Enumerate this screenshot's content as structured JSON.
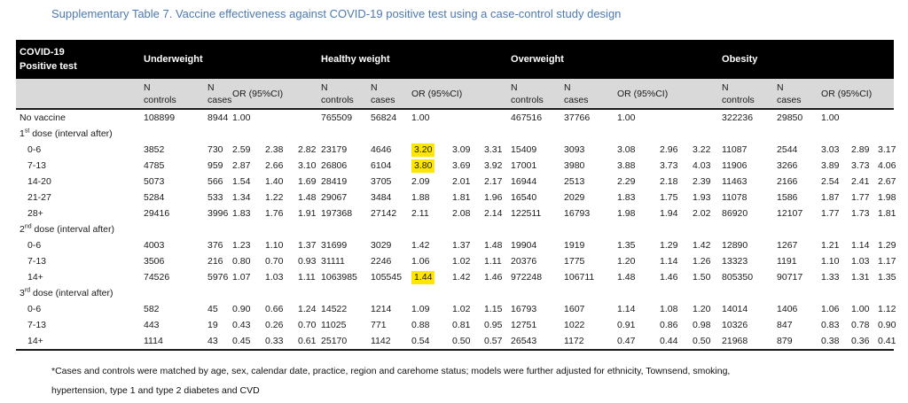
{
  "title": "Supplementary Table 7. Vaccine effectiveness against COVID-19 positive test using a case-control study design",
  "title_color": "#4d7ab0",
  "highlight_color": "#ffe600",
  "table": {
    "corner_line1": "COVID-19",
    "corner_line2": "Positive test",
    "groups": [
      "Underweight",
      "Healthy weight",
      "Overweight",
      "Obesity"
    ],
    "sub": {
      "n": "N",
      "controls": "controls",
      "cases": "cases",
      "or_ci": "OR (95%CI)"
    },
    "rows": [
      {
        "label": "No vaccine",
        "groups": [
          [
            "108899",
            "8944",
            "1.00",
            "",
            ""
          ],
          [
            "765509",
            "56824",
            "1.00",
            "",
            ""
          ],
          [
            "467516",
            "37766",
            "1.00",
            "",
            ""
          ],
          [
            "322236",
            "29850",
            "1.00",
            "",
            ""
          ]
        ]
      },
      {
        "label": "1",
        "sup": "st",
        "rest": " dose (interval after)",
        "section": true
      },
      {
        "label": "0-6",
        "indent": true,
        "hl": [
          [
            1,
            2
          ]
        ],
        "groups": [
          [
            "3852",
            "730",
            "2.59",
            "2.38",
            "2.82"
          ],
          [
            "23179",
            "4646",
            "3.20",
            "3.09",
            "3.31"
          ],
          [
            "15409",
            "3093",
            "3.08",
            "2.96",
            "3.22"
          ],
          [
            "11087",
            "2544",
            "3.03",
            "2.89",
            "3.17"
          ]
        ]
      },
      {
        "label": "7-13",
        "indent": true,
        "hl": [
          [
            1,
            2
          ]
        ],
        "groups": [
          [
            "4785",
            "959",
            "2.87",
            "2.66",
            "3.10"
          ],
          [
            "26806",
            "6104",
            "3.80",
            "3.69",
            "3.92"
          ],
          [
            "17001",
            "3980",
            "3.88",
            "3.73",
            "4.03"
          ],
          [
            "11906",
            "3266",
            "3.89",
            "3.73",
            "4.06"
          ]
        ]
      },
      {
        "label": "14-20",
        "indent": true,
        "groups": [
          [
            "5073",
            "566",
            "1.54",
            "1.40",
            "1.69"
          ],
          [
            "28419",
            "3705",
            "2.09",
            "2.01",
            "2.17"
          ],
          [
            "16944",
            "2513",
            "2.29",
            "2.18",
            "2.39"
          ],
          [
            "11463",
            "2166",
            "2.54",
            "2.41",
            "2.67"
          ]
        ]
      },
      {
        "label": "21-27",
        "indent": true,
        "groups": [
          [
            "5284",
            "533",
            "1.34",
            "1.22",
            "1.48"
          ],
          [
            "29067",
            "3484",
            "1.88",
            "1.81",
            "1.96"
          ],
          [
            "16540",
            "2029",
            "1.83",
            "1.75",
            "1.93"
          ],
          [
            "11078",
            "1586",
            "1.87",
            "1.77",
            "1.98"
          ]
        ]
      },
      {
        "label": "28+",
        "indent": true,
        "groups": [
          [
            "29416",
            "3996",
            "1.83",
            "1.76",
            "1.91"
          ],
          [
            "197368",
            "27142",
            "2.11",
            "2.08",
            "2.14"
          ],
          [
            "122511",
            "16793",
            "1.98",
            "1.94",
            "2.02"
          ],
          [
            "86920",
            "12107",
            "1.77",
            "1.73",
            "1.81"
          ]
        ]
      },
      {
        "label": "2",
        "sup": "nd",
        "rest": " dose (interval after)",
        "section": true
      },
      {
        "label": "0-6",
        "indent": true,
        "groups": [
          [
            "4003",
            "376",
            "1.23",
            "1.10",
            "1.37"
          ],
          [
            "31699",
            "3029",
            "1.42",
            "1.37",
            "1.48"
          ],
          [
            "19904",
            "1919",
            "1.35",
            "1.29",
            "1.42"
          ],
          [
            "12890",
            "1267",
            "1.21",
            "1.14",
            "1.29"
          ]
        ]
      },
      {
        "label": "7-13",
        "indent": true,
        "groups": [
          [
            "3506",
            "216",
            "0.80",
            "0.70",
            "0.93"
          ],
          [
            "31111",
            "2246",
            "1.06",
            "1.02",
            "1.11"
          ],
          [
            "20376",
            "1775",
            "1.20",
            "1.14",
            "1.26"
          ],
          [
            "13323",
            "1191",
            "1.10",
            "1.03",
            "1.17"
          ]
        ]
      },
      {
        "label": "14+",
        "indent": true,
        "hl": [
          [
            1,
            2
          ]
        ],
        "groups": [
          [
            "74526",
            "5976",
            "1.07",
            "1.03",
            "1.11"
          ],
          [
            "1063985",
            "105545",
            "1.44",
            "1.42",
            "1.46"
          ],
          [
            "972248",
            "106711",
            "1.48",
            "1.46",
            "1.50"
          ],
          [
            "805350",
            "90717",
            "1.33",
            "1.31",
            "1.35"
          ]
        ]
      },
      {
        "label": "3",
        "sup": "rd",
        "rest": " dose (interval after)",
        "section": true
      },
      {
        "label": "0-6",
        "indent": true,
        "groups": [
          [
            "582",
            "45",
            "0.90",
            "0.66",
            "1.24"
          ],
          [
            "14522",
            "1214",
            "1.09",
            "1.02",
            "1.15"
          ],
          [
            "16793",
            "1607",
            "1.14",
            "1.08",
            "1.20"
          ],
          [
            "14014",
            "1406",
            "1.06",
            "1.00",
            "1.12"
          ]
        ]
      },
      {
        "label": "7-13",
        "indent": true,
        "groups": [
          [
            "443",
            "19",
            "0.43",
            "0.26",
            "0.70"
          ],
          [
            "11025",
            "771",
            "0.88",
            "0.81",
            "0.95"
          ],
          [
            "12751",
            "1022",
            "0.91",
            "0.86",
            "0.98"
          ],
          [
            "10326",
            "847",
            "0.83",
            "0.78",
            "0.90"
          ]
        ]
      },
      {
        "label": "14+",
        "indent": true,
        "groups": [
          [
            "1114",
            "43",
            "0.45",
            "0.33",
            "0.61"
          ],
          [
            "25170",
            "1142",
            "0.54",
            "0.50",
            "0.57"
          ],
          [
            "26543",
            "1172",
            "0.47",
            "0.44",
            "0.50"
          ],
          [
            "21968",
            "879",
            "0.38",
            "0.36",
            "0.41"
          ]
        ]
      }
    ]
  },
  "footnote": {
    "line1": "*Cases and controls were matched by age, sex, calendar date, practice, region and carehome status; models were further adjusted for ethnicity, Townsend, smoking,",
    "line2": "hypertension, type 1 and type 2 diabetes and CVD"
  }
}
